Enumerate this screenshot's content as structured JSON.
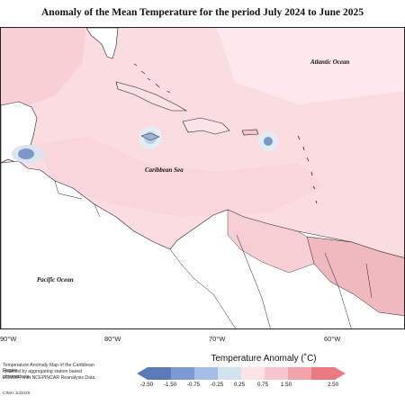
{
  "title": "Anomaly of the Mean Temperature for the period July 2024 to June 2025",
  "ocean_labels": {
    "atlantic": "Atlantic Ocean",
    "caribbean": "Caribbean Sea",
    "pacific": "Pacific Ocean"
  },
  "longitude_ticks": [
    "90°W",
    "80°W",
    "70°W",
    "60°W"
  ],
  "footnote": [
    "Temperature Anomaly Map of the Caribbean Region",
    "obtained by aggregating station based observations,",
    "ECMWF, with NCEPINCAR Reanalysis Data."
  ],
  "credit": "CIMH Jul2025",
  "legend": {
    "title": "Temperature Anomaly (˚C)",
    "labels": [
      "-2.50",
      "-1.50",
      "-0.75",
      "-0.25",
      "0.25",
      "0.75",
      "1.50",
      "2.50"
    ],
    "colors": [
      "#5d7ab8",
      "#7f99d2",
      "#a6bde6",
      "#d2e2ef",
      "#fbe3e6",
      "#f7c6cc",
      "#f0a3aa",
      "#ea7a82"
    ]
  }
}
